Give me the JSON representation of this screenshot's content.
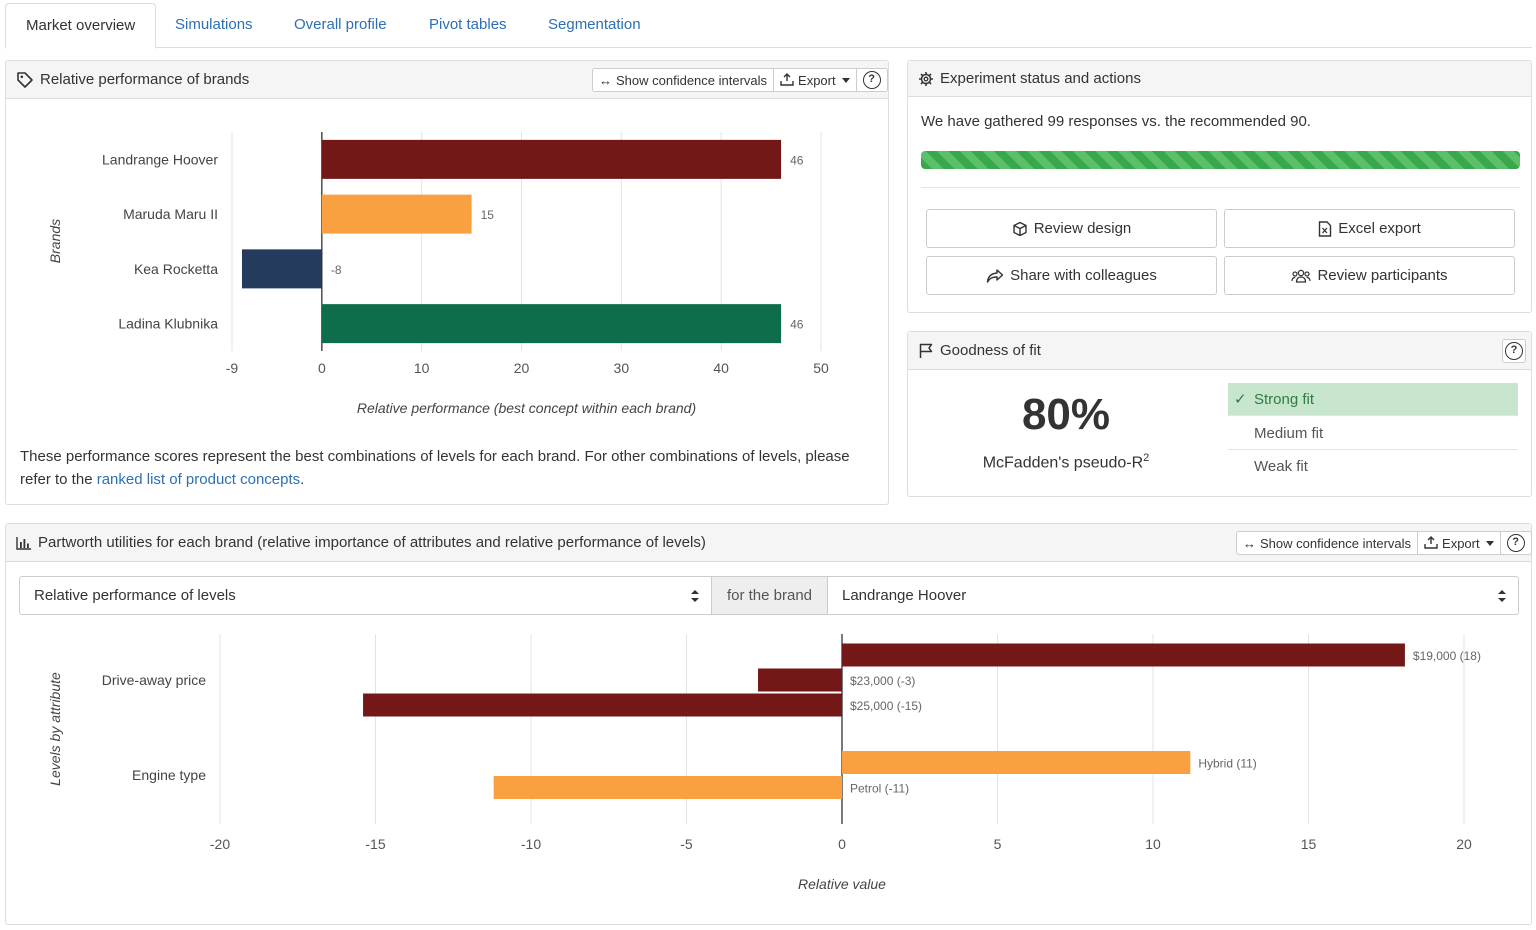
{
  "tabs": [
    "Market overview",
    "Simulations",
    "Overall profile",
    "Pivot tables",
    "Segmentation"
  ],
  "brand_panel": {
    "title": "Relative performance of brands",
    "ci_label": "Show confidence intervals",
    "export_label": "Export",
    "help": "?",
    "note_prefix": "These performance scores represent the best combinations of levels for each brand. For other combinations of levels, please refer to the",
    "note_link": "ranked list of product concepts",
    "note_suffix": "."
  },
  "status_panel": {
    "title": "Experiment status and actions",
    "message": "We have gathered 99 responses vs. the recommended 90.",
    "progress": 1.0,
    "buttons": {
      "review_design": "Review design",
      "excel_export": "Excel export",
      "share": "Share with colleagues",
      "review_participants": "Review participants"
    }
  },
  "fit_panel": {
    "title": "Goodness of fit",
    "help": "?",
    "value": "80%",
    "label": "McFadden's pseudo-R",
    "label_sup": "2",
    "levels": [
      "Strong fit",
      "Medium fit",
      "Weak fit"
    ],
    "selected": "Strong fit"
  },
  "partworth_panel": {
    "title": "Partworth utilities for each brand (relative importance of attributes and relative performance of levels)",
    "ci_label": "Show confidence intervals",
    "export_label": "Export",
    "help": "?",
    "metric_select": "Relative performance of levels",
    "for_label": "for the brand",
    "brand_select": "Landrange Hoover"
  },
  "colors": {
    "dark_red": "#731717",
    "orange": "#f9a141",
    "navy": "#253b5e",
    "green": "#0e6e4c",
    "progress": "#38a84a",
    "fit_selected": "#c7e6cd",
    "link": "#2c6fb7"
  },
  "chart_data": [
    {
      "type": "bar",
      "orientation": "horizontal",
      "categories": [
        "Landrange Hoover",
        "Maruda Maru II",
        "Kea Rocketta",
        "Ladina Klubnika"
      ],
      "values": [
        46,
        15,
        -8,
        46
      ],
      "value_labels": [
        "46",
        "15",
        "-8",
        "46"
      ],
      "bar_colors": [
        "#731717",
        "#f9a141",
        "#253b5e",
        "#0e6e4c"
      ],
      "xlabel": "Relative performance (best concept within each brand)",
      "ylabel": "Brands",
      "xlim": [
        -9,
        50
      ],
      "xticks": [
        "-9",
        "0",
        "10",
        "20",
        "30",
        "40",
        "50"
      ],
      "grid": "vertical"
    },
    {
      "type": "bar",
      "orientation": "horizontal",
      "groups": [
        {
          "name": "Drive-away price",
          "color": "#731717",
          "levels": [
            {
              "label": "$19,000 (18)",
              "value": 18.1
            },
            {
              "label": "$23,000 (-3)",
              "value": -2.7
            },
            {
              "label": "$25,000 (-15)",
              "value": -15.4
            }
          ]
        },
        {
          "name": "Engine type",
          "color": "#f9a141",
          "levels": [
            {
              "label": "Hybrid (11)",
              "value": 11.2
            },
            {
              "label": "Petrol (-11)",
              "value": -11.2
            }
          ]
        }
      ],
      "xlabel": "Relative value",
      "ylabel": "Levels by attribute",
      "xlim": [
        -20,
        20
      ],
      "xticks": [
        "-20",
        "-15",
        "-10",
        "-5",
        "0",
        "5",
        "10",
        "15",
        "20"
      ],
      "grid": "vertical"
    }
  ]
}
